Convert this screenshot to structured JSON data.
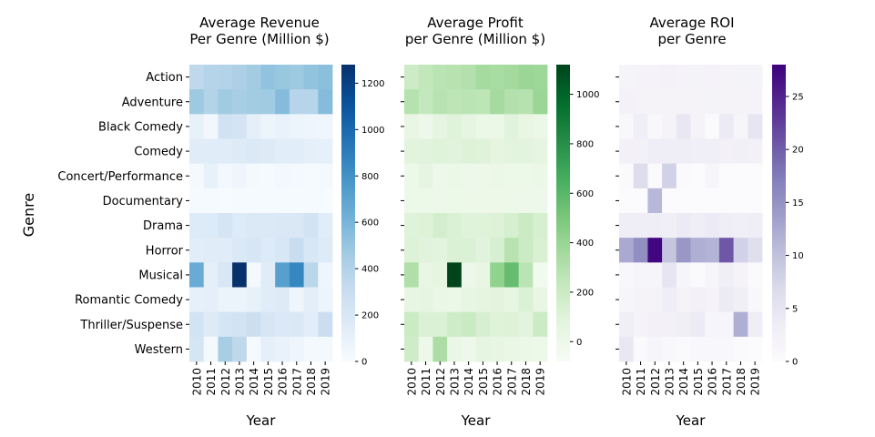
{
  "figure": {
    "ylabel": "Genre",
    "xlabel": "Year"
  },
  "chart_data": [
    {
      "type": "heatmap",
      "title": "Average Revenue\nPer Genre (Million $)",
      "xlabel": "Year",
      "ylabel": "Genre",
      "colormap": "Blues",
      "colorbar": {
        "range": [
          0,
          1280
        ],
        "ticks": [
          0,
          200,
          400,
          600,
          800,
          1000,
          1200
        ]
      },
      "x": [
        "2010",
        "2011",
        "2012",
        "2013",
        "2014",
        "2015",
        "2016",
        "2017",
        "2018",
        "2019"
      ],
      "y": [
        "Action",
        "Adventure",
        "Black Comedy",
        "Comedy",
        "Concert/Performance",
        "Documentary",
        "Drama",
        "Horror",
        "Musical",
        "Romantic Comedy",
        "Thriller/Suspense",
        "Western"
      ],
      "values": [
        [
          350,
          390,
          400,
          420,
          460,
          520,
          500,
          480,
          520,
          540
        ],
        [
          480,
          400,
          470,
          440,
          460,
          470,
          560,
          380,
          380,
          560
        ],
        [
          100,
          40,
          250,
          230,
          120,
          70,
          90,
          70,
          60,
          50
        ],
        [
          150,
          150,
          150,
          160,
          180,
          160,
          140,
          140,
          120,
          110
        ],
        [
          20,
          100,
          30,
          60,
          20,
          10,
          30,
          20,
          15,
          20
        ],
        [
          10,
          10,
          5,
          10,
          15,
          10,
          10,
          15,
          10,
          5
        ],
        [
          170,
          170,
          220,
          170,
          180,
          180,
          190,
          190,
          240,
          150
        ],
        [
          140,
          150,
          150,
          180,
          210,
          170,
          200,
          300,
          200,
          170
        ],
        [
          650,
          120,
          200,
          1280,
          20,
          150,
          720,
          860,
          370,
          60
        ],
        [
          110,
          120,
          80,
          80,
          100,
          150,
          160,
          60,
          130,
          70
        ],
        [
          240,
          160,
          220,
          240,
          280,
          210,
          180,
          190,
          140,
          290
        ],
        [
          220,
          20,
          440,
          350,
          10,
          120,
          90,
          60,
          20,
          20
        ]
      ]
    },
    {
      "type": "heatmap",
      "title": "Average Profit\nper Genre (Million $)",
      "xlabel": "Year",
      "ylabel": "Genre",
      "colormap": "Greens",
      "colorbar": {
        "range": [
          -80,
          1120
        ],
        "ticks": [
          0,
          200,
          400,
          600,
          800,
          1000
        ]
      },
      "x": [
        "2010",
        "2011",
        "2012",
        "2013",
        "2014",
        "2015",
        "2016",
        "2017",
        "2018",
        "2019"
      ],
      "y": [
        "Action",
        "Adventure",
        "Black Comedy",
        "Comedy",
        "Concert/Performance",
        "Documentary",
        "Drama",
        "Horror",
        "Musical",
        "Romantic Comedy",
        "Thriller/Suspense",
        "Western"
      ],
      "values": [
        [
          190,
          240,
          270,
          280,
          300,
          350,
          340,
          360,
          390,
          380
        ],
        [
          290,
          230,
          280,
          260,
          270,
          260,
          350,
          300,
          290,
          390
        ],
        [
          40,
          0,
          60,
          100,
          60,
          20,
          20,
          90,
          40,
          20
        ],
        [
          80,
          90,
          100,
          90,
          110,
          100,
          70,
          80,
          80,
          60
        ],
        [
          10,
          60,
          0,
          20,
          0,
          5,
          20,
          10,
          10,
          20
        ],
        [
          10,
          10,
          0,
          10,
          10,
          5,
          5,
          10,
          0,
          0
        ],
        [
          100,
          110,
          160,
          120,
          100,
          100,
          110,
          150,
          200,
          150
        ],
        [
          110,
          90,
          80,
          120,
          120,
          90,
          140,
          280,
          200,
          130
        ],
        [
          310,
          40,
          70,
          1120,
          0,
          40,
          420,
          560,
          270,
          -30
        ],
        [
          50,
          60,
          30,
          20,
          50,
          70,
          80,
          50,
          120,
          40
        ],
        [
          200,
          120,
          120,
          180,
          210,
          140,
          100,
          110,
          80,
          200
        ],
        [
          180,
          0,
          330,
          30,
          0,
          60,
          50,
          30,
          20,
          10
        ]
      ]
    },
    {
      "type": "heatmap",
      "title": "Average ROI\nper Genre",
      "xlabel": "Year",
      "ylabel": "Genre",
      "colormap": "Purples",
      "colorbar": {
        "range": [
          0,
          28
        ],
        "ticks": [
          0,
          5,
          10,
          15,
          20,
          25
        ]
      },
      "x": [
        "2010",
        "2011",
        "2012",
        "2013",
        "2014",
        "2015",
        "2016",
        "2017",
        "2018",
        "2019"
      ],
      "y": [
        "Action",
        "Adventure",
        "Black Comedy",
        "Comedy",
        "Concert/Performance",
        "Documentary",
        "Drama",
        "Horror",
        "Musical",
        "Romantic Comedy",
        "Thriller/Suspense",
        "Western"
      ],
      "values": [
        [
          1.8,
          2.0,
          1.9,
          2.2,
          2.0,
          2.1,
          2.2,
          2.0,
          2.1,
          2.1
        ],
        [
          2.2,
          2.0,
          2.0,
          2.0,
          2.0,
          2.0,
          2.1,
          2.0,
          2.0,
          2.0
        ],
        [
          1.0,
          3.2,
          1.0,
          2.0,
          4.5,
          2.0,
          0.5,
          4.0,
          1.5,
          5.0
        ],
        [
          2.5,
          2.4,
          3.5,
          3.5,
          3.5,
          3.2,
          3.0,
          2.5,
          2.8,
          2.5
        ],
        [
          0.5,
          6.5,
          0.5,
          8.0,
          0.5,
          0.2,
          1.5,
          0.3,
          0.2,
          0.3
        ],
        [
          0.2,
          0.3,
          11.0,
          0.2,
          0.2,
          0.2,
          0.2,
          0.2,
          0.2,
          0.2
        ],
        [
          3.5,
          3.5,
          3.5,
          3.0,
          4.0,
          3.5,
          4.0,
          3.5,
          3.0,
          3.5
        ],
        [
          12.5,
          15.5,
          27.5,
          9.5,
          14.5,
          12.0,
          11.5,
          20.5,
          8.0,
          6.0
        ],
        [
          1.0,
          1.5,
          1.5,
          5.0,
          1.5,
          0.5,
          1.5,
          3.0,
          2.0,
          0.5
        ],
        [
          1.5,
          2.0,
          2.0,
          3.5,
          2.0,
          2.5,
          2.0,
          4.0,
          3.0,
          1.0
        ],
        [
          3.0,
          2.0,
          2.5,
          2.5,
          3.0,
          4.0,
          1.5,
          1.5,
          12.0,
          3.5
        ],
        [
          4.5,
          0.5,
          1.5,
          1.0,
          0.5,
          1.0,
          1.0,
          1.0,
          0.5,
          0.2
        ]
      ]
    }
  ]
}
